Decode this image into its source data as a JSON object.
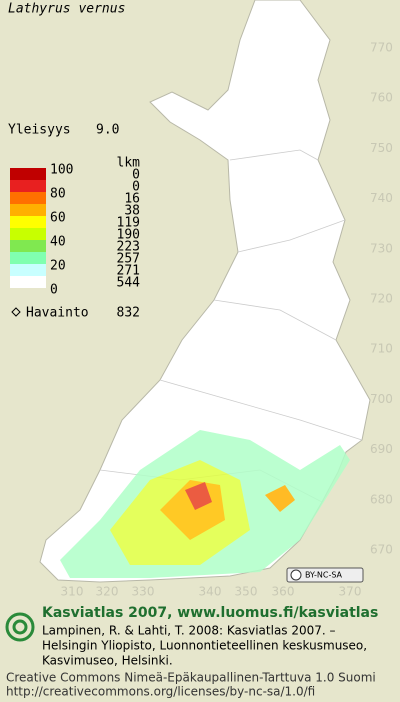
{
  "header": {
    "title": "Lathyrus vernus"
  },
  "frequency": {
    "label": "Yleisyys",
    "value": "9.0"
  },
  "legend": {
    "count_header": "lkm",
    "scale_labels": [
      100,
      80,
      60,
      40,
      20,
      0
    ],
    "colors": [
      "#c00000",
      "#e82020",
      "#ff7000",
      "#ffb000",
      "#ffff00",
      "#c8ff00",
      "#80e850",
      "#80ffb0",
      "#c8ffff",
      "#ffffff"
    ],
    "counts": [
      0,
      0,
      16,
      38,
      119,
      190,
      223,
      257,
      271,
      544
    ]
  },
  "observations": {
    "label": "Havainto",
    "count": 832
  },
  "map": {
    "northing_labels": [
      770,
      760,
      750,
      740,
      730,
      720,
      710,
      700,
      690,
      680,
      670
    ],
    "easting_labels": [
      310,
      320,
      330,
      340,
      350,
      360,
      370
    ]
  },
  "license_badge": "BY-NC-SA",
  "footer": {
    "title": "Kasviatlas 2007, www.luomus.fi/kasviatlas",
    "citation": [
      "Lampinen, R. & Lahti, T. 2008: Kasviatlas 2007. –",
      "Helsingin Yliopisto, Luonnontieteellinen keskusmuseo,",
      "Kasvimuseo, Helsinki."
    ],
    "license": "Creative Commons Nimeä-Epäkaupallinen-Tarttuva 1.0 Suomi",
    "url": "http://creativecommons.org/licenses/by-nc-sa/1.0/fi"
  }
}
